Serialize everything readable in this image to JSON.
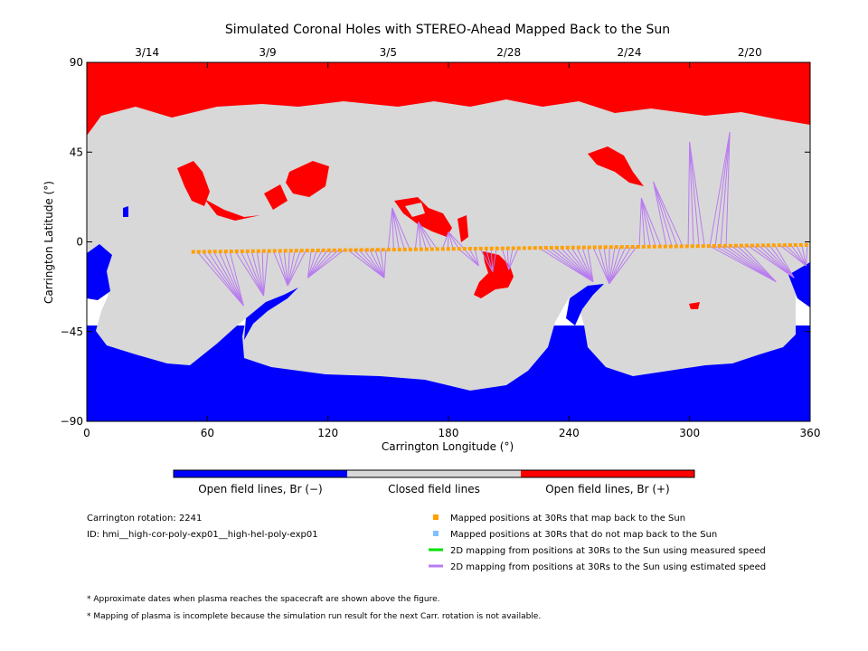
{
  "chart_data": {
    "type": "heatmap",
    "title": "Simulated Coronal Holes with STEREO-Ahead Mapped Back to the Sun",
    "xlabel": "Carrington Longitude (°)",
    "ylabel": "Carrington Latitude (°)",
    "xlim": [
      0,
      360
    ],
    "ylim": [
      -90,
      90
    ],
    "x_ticks": [
      0,
      60,
      120,
      180,
      240,
      300,
      360
    ],
    "y_ticks": [
      -90,
      -45,
      0,
      45,
      90
    ],
    "top_date_ticks": [
      {
        "label": "3/14",
        "lon": 30
      },
      {
        "label": "3/9",
        "lon": 90
      },
      {
        "label": "3/5",
        "lon": 150
      },
      {
        "label": "2/28",
        "lon": 210
      },
      {
        "label": "2/24",
        "lon": 270
      },
      {
        "label": "2/20",
        "lon": 330
      }
    ],
    "classes": [
      {
        "name": "Open field lines, Br (−)",
        "color": "#0000ff"
      },
      {
        "name": "Closed field lines",
        "color": "#d8d8d8"
      },
      {
        "name": "Open field lines, Br (+)",
        "color": "#ff0000"
      }
    ],
    "mapped_points": {
      "lon_start": 53,
      "lon_end": 360,
      "step": 2.7,
      "lat_start": -5,
      "lat_end": -1.5,
      "color": "#ffa000"
    },
    "mapping_lines": {
      "color": "#b97cf0",
      "fans": [
        {
          "lon_from": 55,
          "lon_to": 130,
          "foot": [
            [
              78,
              -32
            ],
            [
              88,
              -27
            ],
            [
              100,
              -22
            ],
            [
              110,
              -18
            ]
          ]
        },
        {
          "lon_from": 130,
          "lon_to": 150,
          "foot": [
            [
              148,
              -18
            ]
          ]
        },
        {
          "lon_from": 150,
          "lon_to": 190,
          "foot": [
            [
              152,
              17
            ],
            [
              165,
              10
            ],
            [
              180,
              5
            ]
          ]
        },
        {
          "lon_from": 185,
          "lon_to": 215,
          "foot": [
            [
              195,
              -12
            ],
            [
              202,
              -15
            ],
            [
              210,
              -14
            ]
          ]
        },
        {
          "lon_from": 225,
          "lon_to": 275,
          "foot": [
            [
              252,
              -20
            ],
            [
              260,
              -21
            ]
          ]
        },
        {
          "lon_from": 275,
          "lon_to": 320,
          "foot": [
            [
              276,
              22
            ],
            [
              282,
              30
            ],
            [
              300,
              50
            ],
            [
              320,
              55
            ]
          ]
        },
        {
          "lon_from": 310,
          "lon_to": 360,
          "foot": [
            [
              343,
              -20
            ],
            [
              352,
              -18
            ],
            [
              358,
              -12
            ]
          ]
        }
      ]
    },
    "legend": [
      {
        "marker": "square",
        "color": "#ffa000",
        "label": "Mapped positions at 30Rs that map back to the Sun"
      },
      {
        "marker": "square",
        "color": "#80c0ff",
        "label": "Mapped positions at 30Rs that do not map back to the Sun"
      },
      {
        "marker": "line",
        "color": "#00e000",
        "label": "2D mapping from positions at 30Rs to the Sun using measured speed"
      },
      {
        "marker": "line",
        "color": "#b97cf0",
        "label": "2D mapping from positions at 30Rs to the Sun using estimated speed"
      }
    ],
    "info": {
      "rotation": "Carrington rotation: 2241",
      "id": "ID: hmi__high-cor-poly-exp01__high-hel-poly-exp01"
    },
    "footnotes": [
      "* Approximate dates when plasma reaches the spacecraft are shown above the figure.",
      "* Mapping of plasma is incomplete because the simulation run result for the next Carr. rotation is not available."
    ],
    "grid": false
  }
}
